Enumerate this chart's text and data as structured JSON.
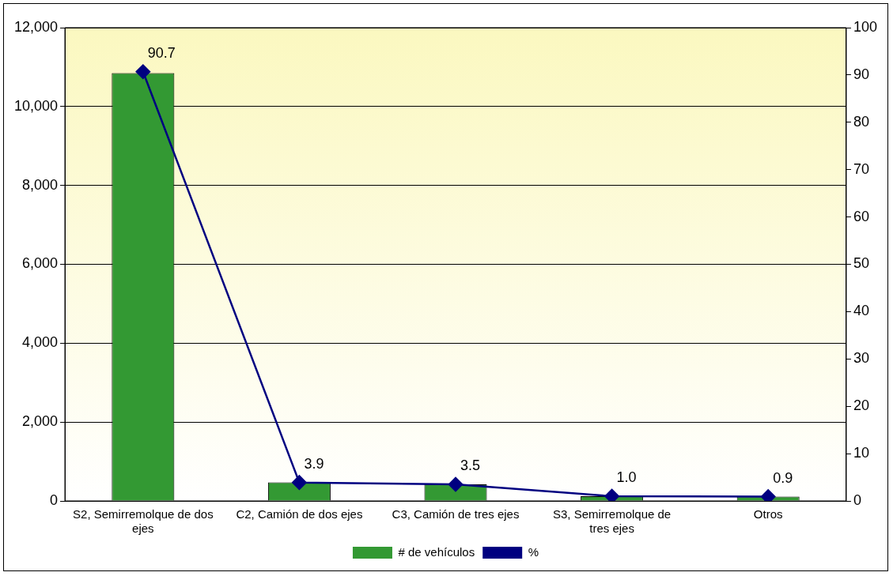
{
  "chart_data": {
    "type": "bar",
    "categories": [
      "S2, Semirremolque de dos ejes",
      "C2, Camión de dos ejes",
      "C3, Camión de tres ejes",
      "S3, Semirremolque de tres ejes",
      "Otros"
    ],
    "series": [
      {
        "name": "# de vehículos",
        "color": "#339933",
        "values": [
          10850,
          470,
          420,
          120,
          110
        ]
      },
      {
        "name": "%",
        "type": "line",
        "axis": "y2",
        "color": "#000080",
        "values": [
          90.7,
          3.9,
          3.5,
          1.0,
          0.9
        ],
        "value_labels": [
          "90.7",
          "3.9",
          "3.5",
          "1.0",
          "0.9"
        ]
      }
    ],
    "ylim": [
      0,
      12000
    ],
    "yticks": [
      {
        "value": 0,
        "label": "0"
      },
      {
        "value": 2000,
        "label": "2,000"
      },
      {
        "value": 4000,
        "label": "4,000"
      },
      {
        "value": 6000,
        "label": "6,000"
      },
      {
        "value": 8000,
        "label": "8,000"
      },
      {
        "value": 10000,
        "label": "10,000"
      },
      {
        "value": 12000,
        "label": "12,000"
      }
    ],
    "y2lim": [
      0,
      100
    ],
    "y2ticks": [
      0,
      10,
      20,
      30,
      40,
      50,
      60,
      70,
      80,
      90,
      100
    ],
    "grid": "y",
    "legend": "bottom",
    "marker": "diamond",
    "line_style": "solid"
  }
}
